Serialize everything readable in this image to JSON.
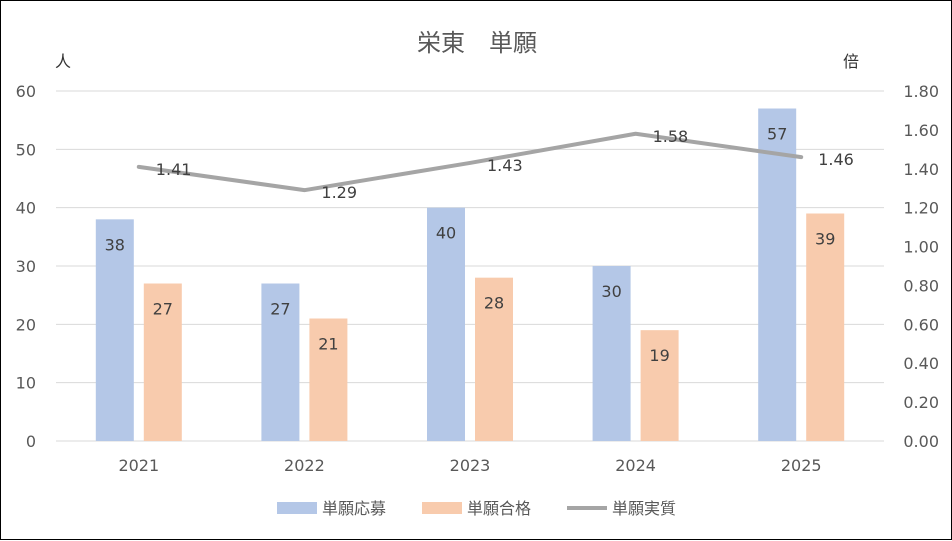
{
  "chart_data": {
    "type": "bar",
    "title": "栄東　単願",
    "y_unit_left": "人",
    "y_unit_right": "倍",
    "categories": [
      "2021",
      "2022",
      "2023",
      "2024",
      "2025"
    ],
    "ylim": [
      0,
      60
    ],
    "yticks": [
      0,
      10,
      20,
      30,
      40,
      50,
      60
    ],
    "y2lim": [
      0,
      1.8
    ],
    "y2ticks": [
      "0.00",
      "0.20",
      "0.40",
      "0.60",
      "0.80",
      "1.00",
      "1.20",
      "1.40",
      "1.60",
      "1.80"
    ],
    "grid": true,
    "legend_position": "bottom",
    "series": [
      {
        "name": "単願応募",
        "type": "bar",
        "axis": "left",
        "color": "#b4c7e7",
        "values": [
          38,
          27,
          40,
          30,
          57
        ]
      },
      {
        "name": "単願合格",
        "type": "bar",
        "axis": "left",
        "color": "#f8cbad",
        "values": [
          27,
          21,
          28,
          19,
          39
        ]
      },
      {
        "name": "単願実質",
        "type": "line",
        "axis": "right",
        "color": "#a5a5a5",
        "values": [
          1.41,
          1.29,
          1.43,
          1.58,
          1.46
        ],
        "labels": [
          "1.41",
          "1.29",
          "1.43",
          "1.58",
          "1.46"
        ]
      }
    ]
  }
}
